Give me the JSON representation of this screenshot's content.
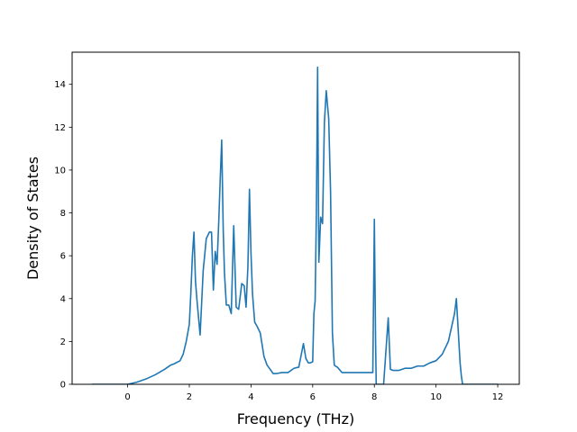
{
  "chart_data": {
    "type": "line",
    "title": "",
    "xlabel": "Frequency (THz)",
    "ylabel": "Density of States",
    "xlim": [
      -1.8,
      12.7
    ],
    "ylim": [
      0,
      15.5
    ],
    "xticks": [
      0,
      2,
      4,
      6,
      8,
      10,
      12
    ],
    "xtick_labels": [
      "0",
      "2",
      "4",
      "6",
      "8",
      "10",
      "12"
    ],
    "yticks": [
      0,
      2,
      4,
      6,
      8,
      10,
      12,
      14
    ],
    "ytick_labels": [
      "0",
      "2",
      "4",
      "6",
      "8",
      "10",
      "12",
      "14"
    ],
    "grid": false,
    "legend": "none",
    "line_color": "#1f77b4",
    "series": [
      {
        "x": [
          -1.15,
          0.0,
          0.3,
          0.6,
          0.9,
          1.2,
          1.4,
          1.5,
          1.7,
          1.8,
          1.9,
          2.0,
          2.05,
          2.1,
          2.15,
          2.2,
          2.25,
          2.35,
          2.45,
          2.55,
          2.65,
          2.72,
          2.78,
          2.84,
          2.9,
          2.96,
          3.0,
          3.05,
          3.1,
          3.14,
          3.2,
          3.28,
          3.36,
          3.44,
          3.52,
          3.6,
          3.7,
          3.78,
          3.84,
          3.9,
          3.95,
          4.0,
          4.05,
          4.12,
          4.2,
          4.3,
          4.42,
          4.52,
          4.62,
          4.72,
          4.82,
          5.0,
          5.2,
          5.4,
          5.55,
          5.7,
          5.78,
          5.86,
          5.92,
          6.0,
          6.04,
          6.08,
          6.12,
          6.16,
          6.2,
          6.26,
          6.32,
          6.38,
          6.44,
          6.52,
          6.58,
          6.64,
          6.7,
          6.74,
          6.8,
          6.95,
          7.1,
          7.3,
          7.5,
          7.7,
          7.8,
          7.95,
          8.0,
          8.04,
          8.06,
          8.1,
          8.15,
          8.3,
          8.45,
          8.52,
          8.6,
          8.8,
          9.0,
          9.2,
          9.4,
          9.6,
          9.8,
          10.0,
          10.2,
          10.4,
          10.6,
          10.66,
          10.72,
          10.78,
          10.82,
          10.86,
          10.92,
          11.0,
          11.4,
          12.0
        ],
        "y": [
          0.0,
          0.0,
          0.1,
          0.25,
          0.45,
          0.7,
          0.9,
          0.95,
          1.1,
          1.4,
          2.0,
          2.8,
          4.3,
          6.0,
          7.1,
          4.8,
          3.9,
          2.3,
          5.3,
          6.8,
          7.1,
          7.1,
          4.4,
          6.2,
          5.6,
          7.8,
          9.5,
          11.4,
          7.2,
          5.2,
          3.7,
          3.7,
          3.3,
          7.4,
          3.6,
          3.5,
          4.7,
          4.6,
          3.6,
          5.5,
          9.1,
          6.1,
          4.2,
          2.9,
          2.7,
          2.4,
          1.3,
          0.9,
          0.7,
          0.5,
          0.5,
          0.55,
          0.55,
          0.75,
          0.8,
          1.9,
          1.2,
          1.0,
          1.0,
          1.05,
          3.3,
          3.9,
          8.0,
          14.8,
          5.7,
          7.8,
          7.5,
          12.2,
          13.7,
          12.4,
          9.0,
          2.4,
          0.9,
          0.85,
          0.8,
          0.55,
          0.55,
          0.55,
          0.55,
          0.55,
          0.55,
          0.55,
          7.7,
          2.0,
          0.0,
          0.0,
          0.0,
          0.0,
          3.1,
          0.7,
          0.65,
          0.65,
          0.75,
          0.75,
          0.85,
          0.85,
          1.0,
          1.1,
          1.4,
          2.0,
          3.3,
          4.0,
          2.5,
          1.0,
          0.4,
          0.0,
          0.0,
          0.0,
          0.0,
          0.0
        ]
      }
    ]
  }
}
